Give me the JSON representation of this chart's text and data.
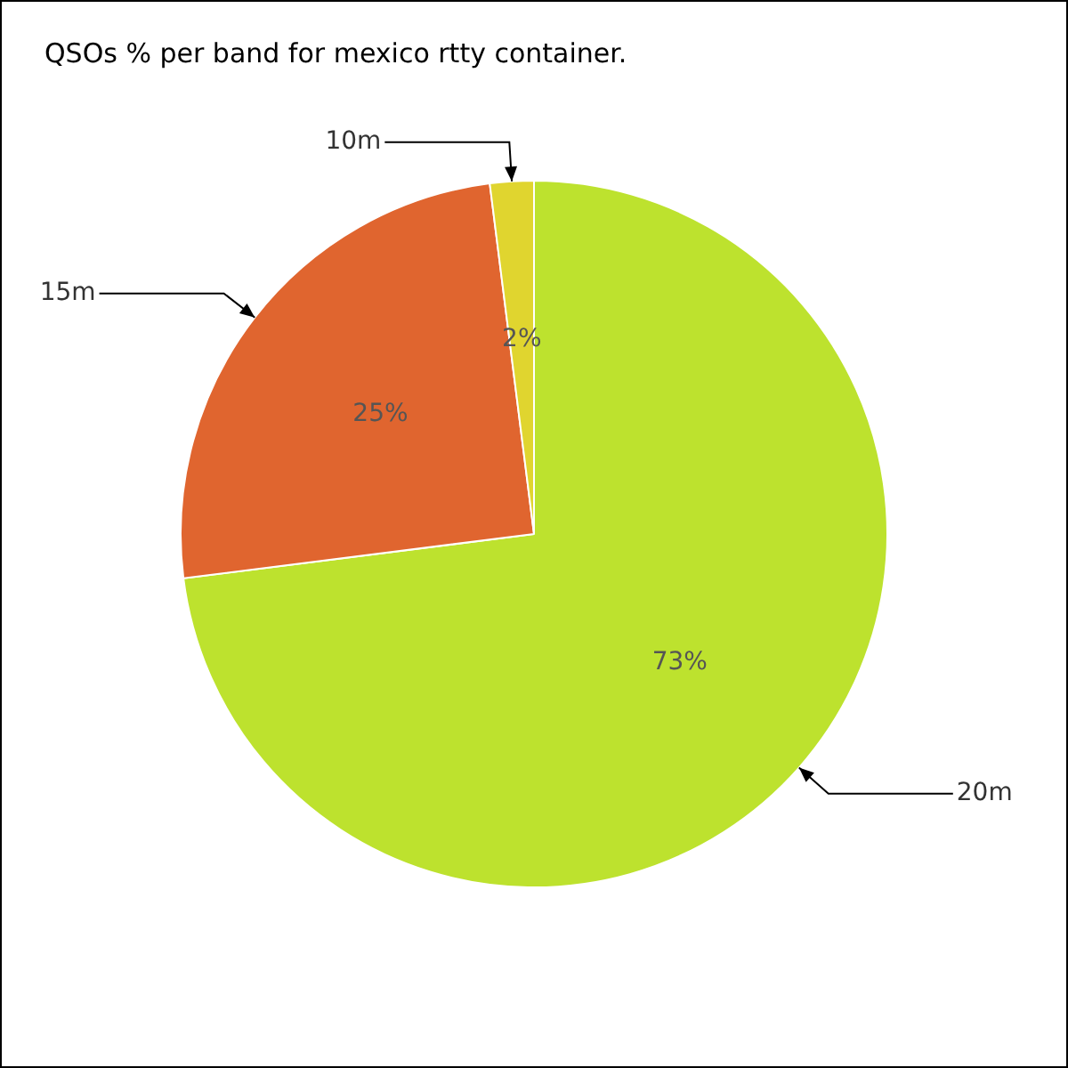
{
  "chart_data": {
    "type": "pie",
    "title": "QSOs % per band for mexico rtty container.",
    "categories": [
      "20m",
      "15m",
      "10m"
    ],
    "values": [
      73,
      25,
      2
    ],
    "colors": [
      "#bde22e",
      "#e0652f",
      "#e0d52f"
    ],
    "value_labels": [
      "73%",
      "25%",
      "2%"
    ],
    "legend": false
  }
}
